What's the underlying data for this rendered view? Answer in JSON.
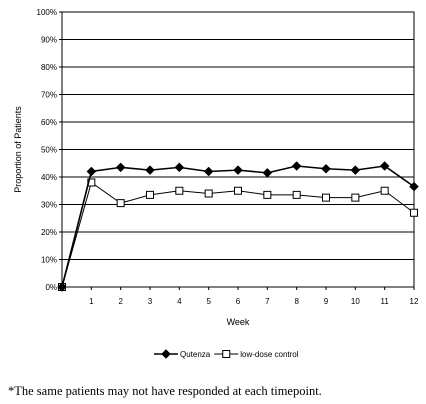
{
  "chart_data": {
    "type": "line",
    "xlabel": "Week",
    "ylabel": "Proportion of Patients",
    "x": [
      0,
      1,
      2,
      3,
      4,
      5,
      6,
      7,
      8,
      9,
      10,
      11,
      12
    ],
    "x_ticks": [
      "1",
      "2",
      "3",
      "4",
      "5",
      "6",
      "7",
      "8",
      "9",
      "10",
      "11",
      "12"
    ],
    "y_ticks": [
      "0%",
      "10%",
      "20%",
      "30%",
      "40%",
      "50%",
      "60%",
      "70%",
      "80%",
      "90%",
      "100%"
    ],
    "ylim": [
      0,
      100
    ],
    "grid": true,
    "legend_position": "bottom",
    "series": [
      {
        "name": "Qutenza",
        "marker": "filled-diamond",
        "values": [
          0,
          42,
          43.5,
          42.5,
          43.5,
          42,
          42.5,
          41.5,
          44,
          43,
          42.5,
          44,
          36.5
        ]
      },
      {
        "name": "low-dose control",
        "marker": "open-square",
        "values": [
          0,
          38,
          30.5,
          33.5,
          35,
          34,
          35,
          33.5,
          33.5,
          32.5,
          32.5,
          35,
          27
        ]
      }
    ]
  },
  "footnote": "*The same patients may not have responded at each timepoint."
}
